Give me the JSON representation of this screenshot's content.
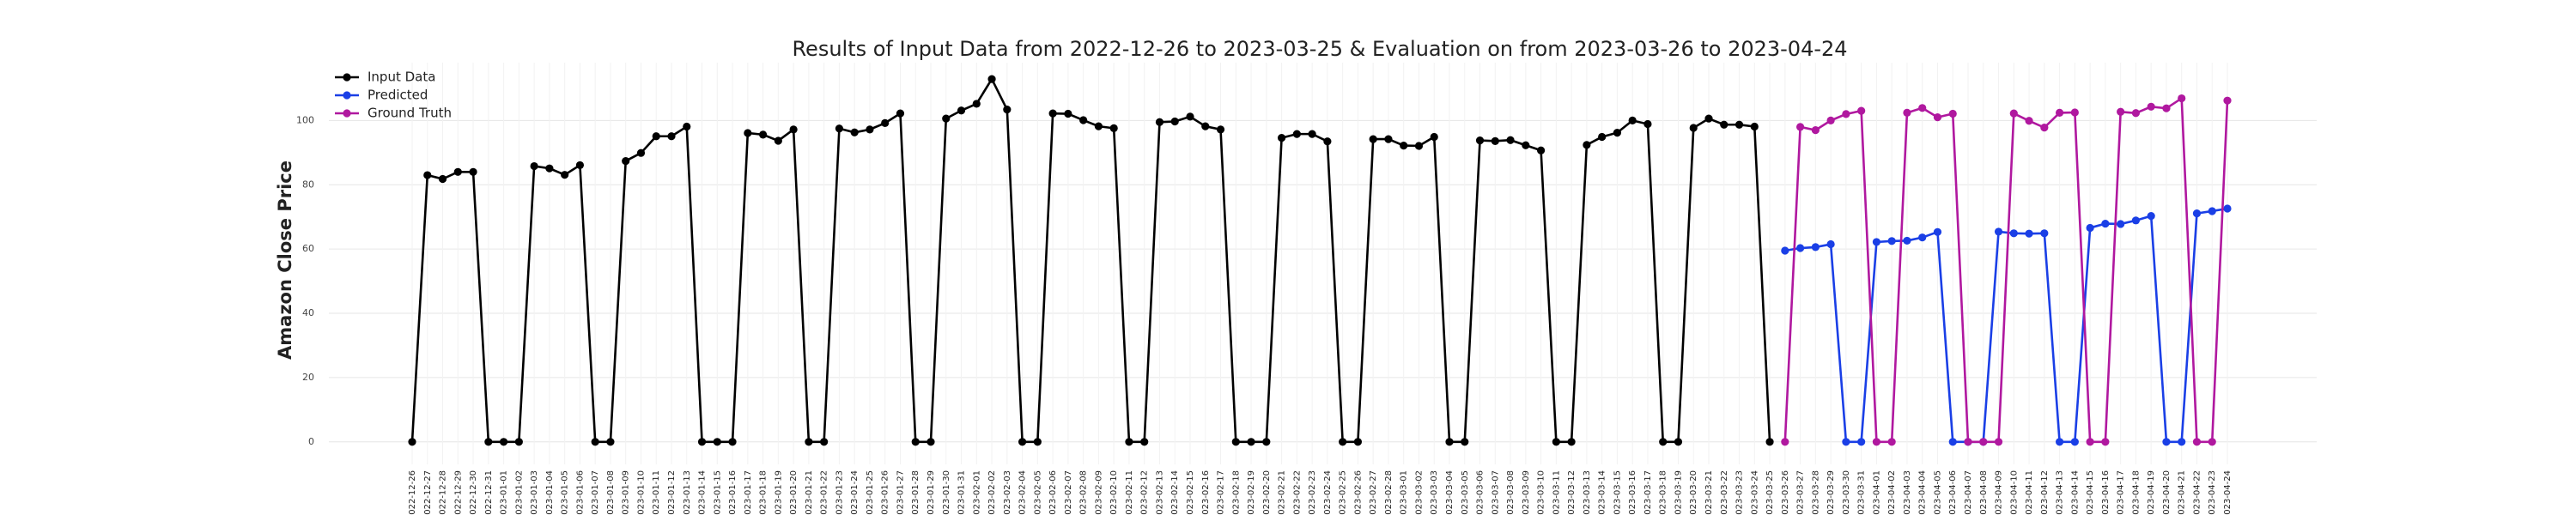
{
  "chart_data": {
    "type": "line",
    "title": "Results of Input Data from 2022-12-26 to 2023-03-25 & Evaluation on from 2023-03-26 to 2023-04-24",
    "ylabel": "Amazon Close Price",
    "categories": [
      "2022-12-26",
      "2022-12-27",
      "2022-12-28",
      "2022-12-29",
      "2022-12-30",
      "2022-12-31",
      "2023-01-01",
      "2023-01-02",
      "2023-01-03",
      "2023-01-04",
      "2023-01-05",
      "2023-01-06",
      "2023-01-07",
      "2023-01-08",
      "2023-01-09",
      "2023-01-10",
      "2023-01-11",
      "2023-01-12",
      "2023-01-13",
      "2023-01-14",
      "2023-01-15",
      "2023-01-16",
      "2023-01-17",
      "2023-01-18",
      "2023-01-19",
      "2023-01-20",
      "2023-01-21",
      "2023-01-22",
      "2023-01-23",
      "2023-01-24",
      "2023-01-25",
      "2023-01-26",
      "2023-01-27",
      "2023-01-28",
      "2023-01-29",
      "2023-01-30",
      "2023-01-31",
      "2023-02-01",
      "2023-02-02",
      "2023-02-03",
      "2023-02-04",
      "2023-02-05",
      "2023-02-06",
      "2023-02-07",
      "2023-02-08",
      "2023-02-09",
      "2023-02-10",
      "2023-02-11",
      "2023-02-12",
      "2023-02-13",
      "2023-02-14",
      "2023-02-15",
      "2023-02-16",
      "2023-02-17",
      "2023-02-18",
      "2023-02-19",
      "2023-02-20",
      "2023-02-21",
      "2023-02-22",
      "2023-02-23",
      "2023-02-24",
      "2023-02-25",
      "2023-02-26",
      "2023-02-27",
      "2023-02-28",
      "2023-03-01",
      "2023-03-02",
      "2023-03-03",
      "2023-03-04",
      "2023-03-05",
      "2023-03-06",
      "2023-03-07",
      "2023-03-08",
      "2023-03-09",
      "2023-03-10",
      "2023-03-11",
      "2023-03-12",
      "2023-03-13",
      "2023-03-14",
      "2023-03-15",
      "2023-03-16",
      "2023-03-17",
      "2023-03-18",
      "2023-03-19",
      "2023-03-20",
      "2023-03-21",
      "2023-03-22",
      "2023-03-23",
      "2023-03-24",
      "2023-03-25",
      "2023-03-26",
      "2023-03-27",
      "2023-03-28",
      "2023-03-29",
      "2023-03-30",
      "2023-03-31",
      "2023-04-01",
      "2023-04-02",
      "2023-04-03",
      "2023-04-04",
      "2023-04-05",
      "2023-04-06",
      "2023-04-07",
      "2023-04-08",
      "2023-04-09",
      "2023-04-10",
      "2023-04-11",
      "2023-04-12",
      "2023-04-13",
      "2023-04-14",
      "2023-04-15",
      "2023-04-16",
      "2023-04-17",
      "2023-04-18",
      "2023-04-19",
      "2023-04-20",
      "2023-04-21",
      "2023-04-22",
      "2023-04-23",
      "2023-04-24"
    ],
    "series": [
      {
        "name": "Input Data",
        "color": "#000000",
        "values": [
          0,
          83,
          81.8,
          84,
          84,
          0,
          0,
          0,
          85.8,
          85.1,
          83.1,
          86.1,
          0,
          0,
          87.4,
          89.9,
          95.1,
          95.1,
          98.1,
          0,
          0,
          0,
          96.1,
          95.6,
          93.7,
          97.2,
          0,
          0,
          97.5,
          96.3,
          97.2,
          99.2,
          102.2,
          0,
          0,
          100.6,
          103.1,
          105.2,
          112.9,
          103.4,
          0,
          0,
          102.2,
          102.1,
          100.1,
          98.2,
          97.6,
          0,
          0,
          99.5,
          99.7,
          101.2,
          98.2,
          97.2,
          0,
          0,
          0,
          94.6,
          95.8,
          95.8,
          93.5,
          0,
          0,
          94.2,
          94.2,
          92.2,
          92.1,
          94.9,
          0,
          0,
          93.8,
          93.6,
          93.9,
          92.3,
          90.7,
          0,
          0,
          92.4,
          94.9,
          96.2,
          100,
          98.9,
          0,
          0,
          97.7,
          100.6,
          98.7,
          98.7,
          98.1,
          0,
          null,
          null,
          null,
          null,
          null,
          null,
          null,
          null,
          null,
          null,
          null,
          null,
          null,
          null,
          null,
          null,
          null,
          null,
          null,
          null,
          null,
          null,
          null,
          null,
          null,
          null,
          null,
          null,
          null,
          null
        ]
      },
      {
        "name": "Predicted",
        "color": "#1a3fe6",
        "values": [
          null,
          null,
          null,
          null,
          null,
          null,
          null,
          null,
          null,
          null,
          null,
          null,
          null,
          null,
          null,
          null,
          null,
          null,
          null,
          null,
          null,
          null,
          null,
          null,
          null,
          null,
          null,
          null,
          null,
          null,
          null,
          null,
          null,
          null,
          null,
          null,
          null,
          null,
          null,
          null,
          null,
          null,
          null,
          null,
          null,
          null,
          null,
          null,
          null,
          null,
          null,
          null,
          null,
          null,
          null,
          null,
          null,
          null,
          null,
          null,
          null,
          null,
          null,
          null,
          null,
          null,
          null,
          null,
          null,
          null,
          null,
          null,
          null,
          null,
          null,
          null,
          null,
          null,
          null,
          null,
          null,
          null,
          null,
          null,
          null,
          null,
          null,
          null,
          null,
          null,
          59.5,
          60.3,
          60.6,
          61.5,
          0,
          0,
          62.2,
          62.5,
          62.6,
          63.6,
          65.3,
          0,
          0,
          0,
          65.4,
          64.9,
          64.8,
          64.9,
          0,
          0,
          66.6,
          67.9,
          67.8,
          68.9,
          70.3,
          0,
          0,
          71.1,
          71.8,
          72.6
        ]
      },
      {
        "name": "Ground Truth",
        "color": "#b0189f",
        "values": [
          null,
          null,
          null,
          null,
          null,
          null,
          null,
          null,
          null,
          null,
          null,
          null,
          null,
          null,
          null,
          null,
          null,
          null,
          null,
          null,
          null,
          null,
          null,
          null,
          null,
          null,
          null,
          null,
          null,
          null,
          null,
          null,
          null,
          null,
          null,
          null,
          null,
          null,
          null,
          null,
          null,
          null,
          null,
          null,
          null,
          null,
          null,
          null,
          null,
          null,
          null,
          null,
          null,
          null,
          null,
          null,
          null,
          null,
          null,
          null,
          null,
          null,
          null,
          null,
          null,
          null,
          null,
          null,
          null,
          null,
          null,
          null,
          null,
          null,
          null,
          null,
          null,
          null,
          null,
          null,
          null,
          null,
          null,
          null,
          null,
          null,
          null,
          null,
          null,
          null,
          0,
          98,
          97,
          100,
          102,
          103,
          0,
          0,
          102.4,
          103.9,
          101,
          102.1,
          0,
          0,
          0,
          102.2,
          99.9,
          97.8,
          102.4,
          102.5,
          0,
          0,
          102.7,
          102.3,
          104.3,
          103.8,
          106.9,
          0,
          0,
          106.2
        ]
      }
    ],
    "ylim": [
      -7,
      118
    ],
    "yticks": [
      0,
      20,
      40,
      60,
      80,
      100
    ],
    "grid": true,
    "legend": "upper left"
  }
}
